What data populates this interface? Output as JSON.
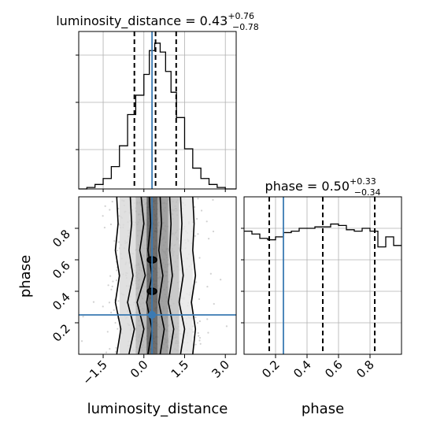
{
  "chart_data": {
    "type": "corner",
    "grid": true,
    "truth_color": "#3a7ab3",
    "parameters": [
      {
        "name": "luminosity_distance",
        "axis_label": "luminosity_distance",
        "title_lhs": "luminosity_distance = 0.43",
        "title_sup": "+0.76",
        "title_sub": "−0.78",
        "range": [
          -2.4,
          3.4
        ],
        "ticks": [
          -1.5,
          0.0,
          1.5,
          3.0
        ],
        "tick_labels": [
          "−1.5",
          "0.0",
          "1.5",
          "3.0"
        ],
        "quantiles": [
          -0.35,
          0.43,
          1.19
        ],
        "truth": 0.3,
        "hist_bins": [
          -2.4,
          -2.1,
          -1.8,
          -1.5,
          -1.2,
          -0.9,
          -0.6,
          -0.3,
          0.0,
          0.2,
          0.4,
          0.6,
          0.8,
          1.0,
          1.2,
          1.5,
          1.8,
          2.1,
          2.4,
          2.7,
          3.0,
          3.4
        ],
        "hist_counts": [
          0,
          1,
          3,
          7,
          15,
          29,
          50,
          63,
          77,
          93,
          98,
          92,
          79,
          65,
          48,
          27,
          14,
          7,
          3,
          1,
          0
        ]
      },
      {
        "name": "phase",
        "axis_label": "phase",
        "title_lhs": "phase = 0.50",
        "title_sup": "+0.33",
        "title_sub": "−0.34",
        "range": [
          0.0,
          1.0
        ],
        "ticks": [
          0.2,
          0.4,
          0.6,
          0.8
        ],
        "tick_labels": [
          "0.2",
          "0.4",
          "0.6",
          "0.8"
        ],
        "quantiles": [
          0.16,
          0.5,
          0.83
        ],
        "truth": 0.25,
        "hist_bins": [
          0.0,
          0.05,
          0.1,
          0.15,
          0.2,
          0.25,
          0.3,
          0.35,
          0.4,
          0.45,
          0.5,
          0.55,
          0.6,
          0.65,
          0.7,
          0.75,
          0.8,
          0.85,
          0.9,
          0.95,
          1.0
        ],
        "hist_counts": [
          86,
          84,
          81,
          80,
          82,
          85,
          86,
          88,
          88,
          89,
          89,
          91,
          90,
          87,
          86,
          88,
          86,
          75,
          82,
          76
        ],
        "hist_max": 110
      }
    ],
    "joint": {
      "x_param": "luminosity_distance",
      "y_param": "phase",
      "truth_point": [
        0.3,
        0.25
      ],
      "density_columns": [
        {
          "x0": -0.9,
          "x1": -0.3,
          "weight": 0.18
        },
        {
          "x0": -0.3,
          "x1": 0.1,
          "weight": 0.38
        },
        {
          "x0": 0.1,
          "x1": 0.5,
          "weight": 0.85
        },
        {
          "x0": 0.5,
          "x1": 0.9,
          "weight": 0.55
        },
        {
          "x0": 0.9,
          "x1": 1.3,
          "weight": 0.32
        },
        {
          "x0": 1.3,
          "x1": 1.8,
          "weight": 0.12
        }
      ],
      "contours": [
        {
          "x_left": [
            -1.0,
            -0.85,
            -1.05,
            -0.9,
            -1.05,
            -0.95,
            -1.0
          ],
          "x_right": [
            1.8,
            1.9,
            1.75,
            1.9,
            1.8,
            1.85,
            1.8
          ]
        },
        {
          "x_left": [
            -0.55,
            -0.35,
            -0.6,
            -0.4,
            -0.55,
            -0.45,
            -0.5
          ],
          "x_right": [
            1.35,
            1.5,
            1.3,
            1.45,
            1.35,
            1.4,
            1.35
          ]
        },
        {
          "x_left": [
            -0.2,
            0.0,
            -0.25,
            0.05,
            -0.15,
            0.0,
            -0.1
          ],
          "x_right": [
            0.95,
            1.1,
            0.9,
            1.05,
            0.95,
            1.0,
            0.95
          ]
        },
        {
          "x_left": [
            0.15,
            0.3,
            0.1,
            0.3,
            0.15,
            0.25,
            0.2
          ],
          "x_right": [
            0.6,
            0.75,
            0.55,
            0.7,
            0.55,
            0.65,
            0.6
          ]
        }
      ],
      "contour_y": [
        0.0,
        0.16,
        0.33,
        0.5,
        0.66,
        0.83,
        1.0
      ]
    }
  }
}
